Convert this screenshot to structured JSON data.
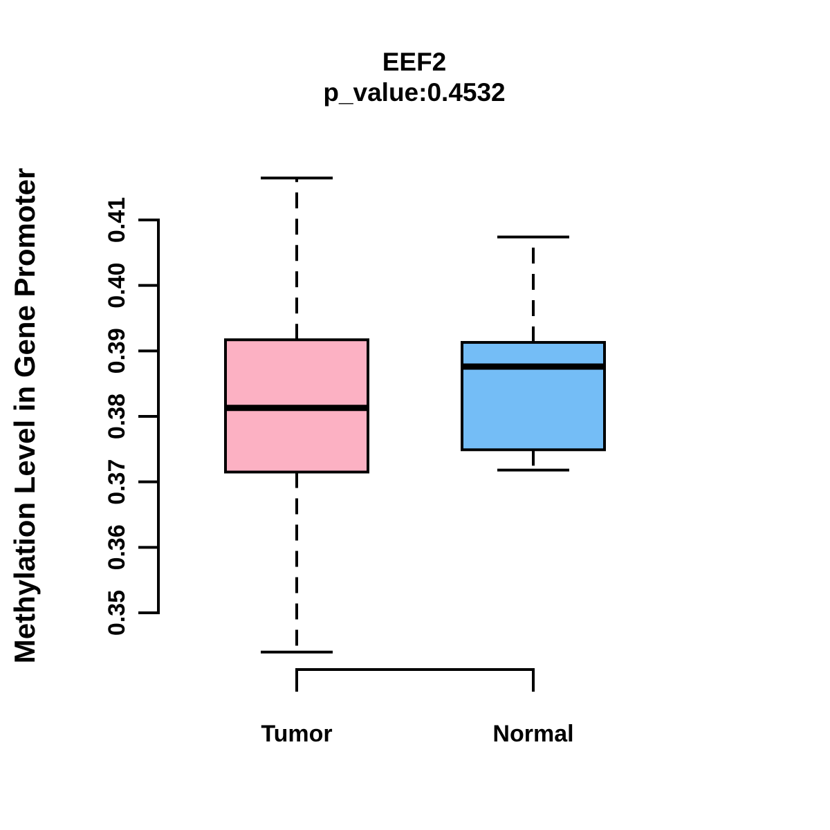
{
  "chart_data": {
    "type": "boxplot",
    "title": "EEF2",
    "subtitle": "p_value:0.4532",
    "p_value": 0.4532,
    "ylabel": "Methylation Level in Gene Promoter",
    "xlabel": "",
    "categories": [
      "Tumor",
      "Normal"
    ],
    "ytick_labels": [
      "0.35",
      "0.36",
      "0.37",
      "0.38",
      "0.39",
      "0.40",
      "0.41"
    ],
    "yticks": [
      0.35,
      0.36,
      0.37,
      0.38,
      0.39,
      0.4,
      0.41
    ],
    "ylim": [
      0.35,
      0.41
    ],
    "grid": false,
    "legend": "none",
    "series": [
      {
        "name": "Tumor",
        "fill_color": "#FCB1C3",
        "whisker_low": 0.344,
        "q1": 0.3715,
        "median": 0.3813,
        "q3": 0.3917,
        "whisker_high": 0.4164
      },
      {
        "name": "Normal",
        "fill_color": "#74BDF6",
        "whisker_low": 0.3718,
        "q1": 0.3749,
        "median": 0.3876,
        "q3": 0.3913,
        "whisker_high": 0.4074
      }
    ],
    "box_border_color": "#000000",
    "axis_color": "#000000",
    "background_color": "#FFFFFF"
  }
}
